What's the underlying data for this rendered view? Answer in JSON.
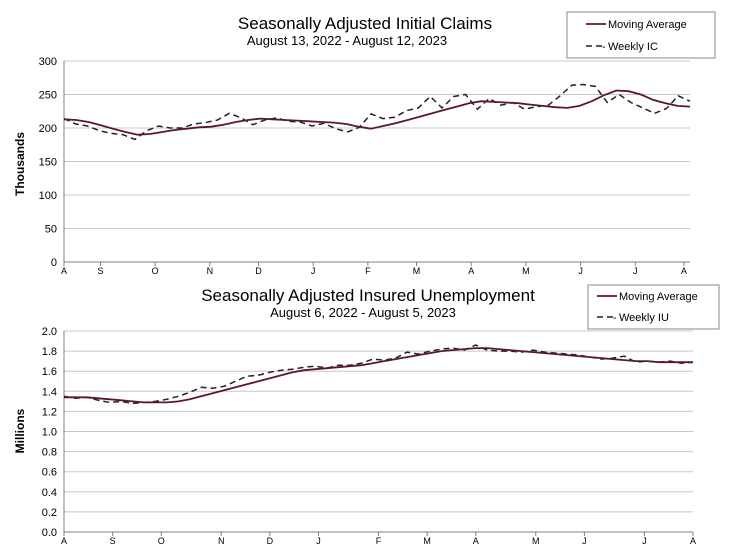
{
  "chart_data": [
    {
      "type": "line",
      "title": "Seasonally Adjusted Initial Claims",
      "subtitle": "August 13, 2022 - August 12, 2023",
      "ylabel": "Thousands",
      "ylim": [
        0,
        300
      ],
      "yticks": [
        "0",
        "50",
        "100",
        "150",
        "200",
        "250",
        "300"
      ],
      "ytick_values": [
        0,
        50,
        100,
        150,
        200,
        250,
        300
      ],
      "xticks": [
        "A",
        "S",
        "O",
        "N",
        "D",
        "J",
        "F",
        "M",
        "A",
        "M",
        "J",
        "J",
        "A"
      ],
      "xtick_values": [
        0,
        3,
        7.5,
        12,
        16,
        20.5,
        25,
        29,
        33.5,
        38,
        42.5,
        47,
        51
      ],
      "x_range": [
        0,
        51.5
      ],
      "grid": true,
      "legend": "top-right",
      "series": [
        {
          "name": "Moving Average",
          "style": "solid",
          "values": [
            213,
            212,
            209,
            204,
            199,
            194,
            190,
            191,
            194,
            197,
            199,
            201,
            202,
            205,
            209,
            212,
            214,
            213,
            212,
            211,
            210,
            209,
            208,
            206,
            202,
            199,
            203,
            207,
            212,
            217,
            222,
            227,
            232,
            237,
            240,
            239,
            238,
            237,
            235,
            233,
            231,
            230,
            233,
            240,
            249,
            256,
            255,
            250,
            242,
            237,
            233,
            232
          ]
        },
        {
          "name": "Weekly IC",
          "style": "dashed",
          "values": [
            214,
            206,
            203,
            196,
            192,
            190,
            183,
            196,
            203,
            200,
            200,
            206,
            208,
            212,
            222,
            215,
            205,
            212,
            215,
            210,
            209,
            203,
            207,
            199,
            194,
            201,
            221,
            214,
            216,
            226,
            230,
            247,
            230,
            247,
            250,
            228,
            244,
            234,
            238,
            228,
            232,
            234,
            248,
            264,
            265,
            262,
            238,
            250,
            238,
            230,
            222,
            229,
            248,
            240
          ]
        }
      ]
    },
    {
      "type": "line",
      "title": "Seasonally Adjusted Insured Unemployment",
      "subtitle": "August 6, 2022 - August 5, 2023",
      "ylabel": "Millions",
      "ylim": [
        0,
        2.0
      ],
      "yticks": [
        "0.0",
        "0.2",
        "0.4",
        "0.6",
        "0.8",
        "1.0",
        "1.2",
        "1.4",
        "1.6",
        "1.8",
        "2.0"
      ],
      "ytick_values": [
        0,
        0.2,
        0.4,
        0.6,
        0.8,
        1.0,
        1.2,
        1.4,
        1.6,
        1.8,
        2.0
      ],
      "xticks": [
        "A",
        "S",
        "O",
        "N",
        "D",
        "J",
        "F",
        "M",
        "A",
        "M",
        "J",
        "J",
        "A"
      ],
      "xtick_values": [
        0,
        4.3,
        8.6,
        13.9,
        18.2,
        22.5,
        27.8,
        32.1,
        36.4,
        41.7,
        46,
        51.3,
        55.6
      ],
      "x_range": [
        0,
        55.6
      ],
      "grid": true,
      "legend": "top-right",
      "series": [
        {
          "name": "Moving Average",
          "style": "solid",
          "values": [
            1.34,
            1.34,
            1.34,
            1.33,
            1.32,
            1.31,
            1.3,
            1.29,
            1.29,
            1.29,
            1.3,
            1.32,
            1.35,
            1.38,
            1.41,
            1.44,
            1.47,
            1.5,
            1.53,
            1.56,
            1.59,
            1.61,
            1.62,
            1.63,
            1.64,
            1.65,
            1.66,
            1.68,
            1.7,
            1.72,
            1.74,
            1.76,
            1.78,
            1.8,
            1.81,
            1.82,
            1.83,
            1.83,
            1.82,
            1.81,
            1.8,
            1.79,
            1.78,
            1.77,
            1.76,
            1.75,
            1.74,
            1.73,
            1.72,
            1.71,
            1.7,
            1.7,
            1.69,
            1.69,
            1.69,
            1.69
          ]
        },
        {
          "name": "Weekly IU",
          "style": "dashed",
          "values": [
            1.35,
            1.33,
            1.34,
            1.31,
            1.29,
            1.3,
            1.28,
            1.29,
            1.3,
            1.32,
            1.35,
            1.39,
            1.44,
            1.43,
            1.45,
            1.5,
            1.55,
            1.56,
            1.59,
            1.61,
            1.62,
            1.64,
            1.65,
            1.63,
            1.66,
            1.66,
            1.68,
            1.72,
            1.71,
            1.73,
            1.79,
            1.77,
            1.8,
            1.82,
            1.83,
            1.81,
            1.86,
            1.81,
            1.8,
            1.8,
            1.79,
            1.81,
            1.79,
            1.78,
            1.77,
            1.76,
            1.74,
            1.72,
            1.73,
            1.75,
            1.69,
            1.7,
            1.69,
            1.7,
            1.68,
            1.69
          ]
        }
      ]
    }
  ]
}
